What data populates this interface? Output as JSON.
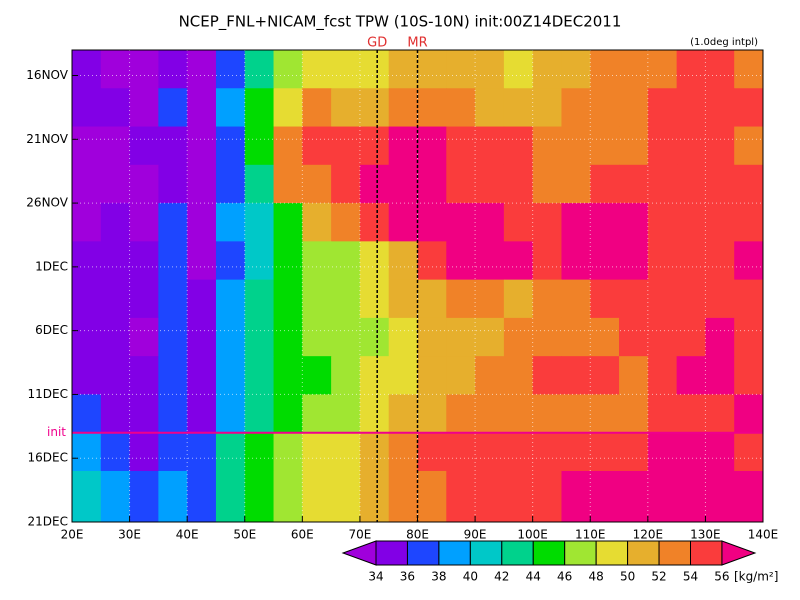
{
  "chart_data": {
    "type": "heatmap",
    "title": "NCEP_FNL+NICAM_fcst TPW (10S-10N) init:00Z14DEC2011",
    "annotation": "(1.0deg intpl)",
    "x_bins": [
      20,
      25,
      30,
      35,
      40,
      45,
      50,
      55,
      60,
      65,
      70,
      75,
      80,
      85,
      90,
      95,
      100,
      105,
      110,
      115,
      120,
      125,
      130,
      135,
      140
    ],
    "y": [
      "2011-11-14",
      "2011-11-17",
      "2011-11-20",
      "2011-11-23",
      "2011-11-26",
      "2011-11-29",
      "2011-12-02",
      "2011-12-05",
      "2011-12-08",
      "2011-12-11",
      "2011-12-14",
      "2011-12-17"
    ],
    "values": [
      [
        34,
        33,
        33,
        35,
        33,
        36,
        42,
        46,
        48,
        48,
        49,
        50,
        51,
        50,
        50,
        49,
        50,
        51,
        52,
        52,
        53,
        54,
        54,
        53
      ],
      [
        34,
        34,
        33,
        36,
        33,
        38,
        44,
        48,
        52,
        50,
        50,
        52,
        52,
        52,
        51,
        51,
        50,
        52,
        52,
        52,
        54,
        54,
        54,
        54
      ],
      [
        33,
        33,
        34,
        35,
        33,
        37,
        44,
        53,
        54,
        54,
        55,
        56,
        56,
        55,
        54,
        54,
        53,
        52,
        53,
        53,
        54,
        54,
        54,
        53
      ],
      [
        33,
        33,
        33,
        35,
        33,
        37,
        42,
        52,
        53,
        54,
        56,
        57,
        57,
        55,
        55,
        54,
        53,
        53,
        54,
        55,
        55,
        54,
        54,
        55
      ],
      [
        33,
        34,
        33,
        36,
        33,
        38,
        40,
        44,
        50,
        52,
        54,
        56,
        57,
        57,
        56,
        55,
        55,
        56,
        57,
        56,
        55,
        55,
        54,
        55
      ],
      [
        34,
        35,
        34,
        36,
        33,
        36,
        40,
        44,
        46,
        47,
        48,
        50,
        54,
        57,
        57,
        56,
        55,
        56,
        57,
        56,
        55,
        54,
        55,
        56
      ],
      [
        34,
        35,
        34,
        36,
        34,
        38,
        42,
        45,
        46,
        47,
        48,
        50,
        50,
        52,
        52,
        51,
        52,
        53,
        54,
        55,
        54,
        54,
        55,
        55
      ],
      [
        34,
        34,
        33,
        36,
        34,
        38,
        42,
        45,
        46,
        47,
        46,
        48,
        50,
        50,
        51,
        52,
        52,
        53,
        53,
        54,
        54,
        55,
        56,
        55
      ],
      [
        35,
        35,
        34,
        37,
        35,
        38,
        42,
        44,
        45,
        47,
        48,
        49,
        50,
        51,
        52,
        53,
        55,
        55,
        54,
        53,
        54,
        56,
        56,
        55
      ],
      [
        36,
        35,
        34,
        36,
        35,
        39,
        42,
        44,
        46,
        47,
        49,
        50,
        50,
        52,
        53,
        53,
        53,
        52,
        52,
        53,
        55,
        55,
        55,
        56
      ],
      [
        38,
        36,
        35,
        37,
        36,
        42,
        44,
        46,
        48,
        48,
        50,
        53,
        54,
        54,
        54,
        54,
        54,
        55,
        55,
        55,
        56,
        56,
        56,
        55
      ],
      [
        40,
        38,
        36,
        38,
        36,
        42,
        45,
        47,
        48,
        49,
        51,
        53,
        53,
        54,
        54,
        55,
        55,
        56,
        56,
        57,
        57,
        56,
        57,
        56
      ]
    ],
    "xlim": [
      20,
      140
    ],
    "xticks": [
      {
        "value": 20,
        "label": "20E"
      },
      {
        "value": 30,
        "label": "30E"
      },
      {
        "value": 40,
        "label": "40E"
      },
      {
        "value": 50,
        "label": "50E"
      },
      {
        "value": 60,
        "label": "60E"
      },
      {
        "value": 70,
        "label": "70E"
      },
      {
        "value": 80,
        "label": "80E"
      },
      {
        "value": 90,
        "label": "90E"
      },
      {
        "value": 100,
        "label": "100E"
      },
      {
        "value": 110,
        "label": "110E"
      },
      {
        "value": 120,
        "label": "120E"
      },
      {
        "value": 130,
        "label": "130E"
      },
      {
        "value": 140,
        "label": "140E"
      }
    ],
    "ylim": [
      "2011-11-14",
      "2011-12-21"
    ],
    "yticks": [
      {
        "value": "2011-11-16",
        "label": "16NOV"
      },
      {
        "value": "2011-11-21",
        "label": "21NOV"
      },
      {
        "value": "2011-11-26",
        "label": "26NOV"
      },
      {
        "value": "2011-12-01",
        "label": "1DEC"
      },
      {
        "value": "2011-12-06",
        "label": "6DEC"
      },
      {
        "value": "2011-12-11",
        "label": "11DEC"
      },
      {
        "value": "2011-12-16",
        "label": "16DEC"
      },
      {
        "value": "2011-12-21",
        "label": "21DEC"
      }
    ],
    "grid": true,
    "levels": [
      34,
      36,
      38,
      40,
      42,
      44,
      46,
      48,
      50,
      52,
      54,
      56
    ],
    "colors": [
      "#a000dc",
      "#8200e6",
      "#1e46ff",
      "#00a0ff",
      "#00c8c8",
      "#00d28c",
      "#00dc00",
      "#a0e632",
      "#e6dc32",
      "#e6af2d",
      "#f08228",
      "#fa3c3c",
      "#f00082"
    ],
    "colorbar_unit": "[kg/m²]",
    "markers": [
      {
        "label": "GD",
        "x": 73
      },
      {
        "label": "MR",
        "x": 80
      }
    ],
    "init_line": {
      "label": "init",
      "y": "2011-12-14",
      "color": "#f0008c"
    }
  }
}
